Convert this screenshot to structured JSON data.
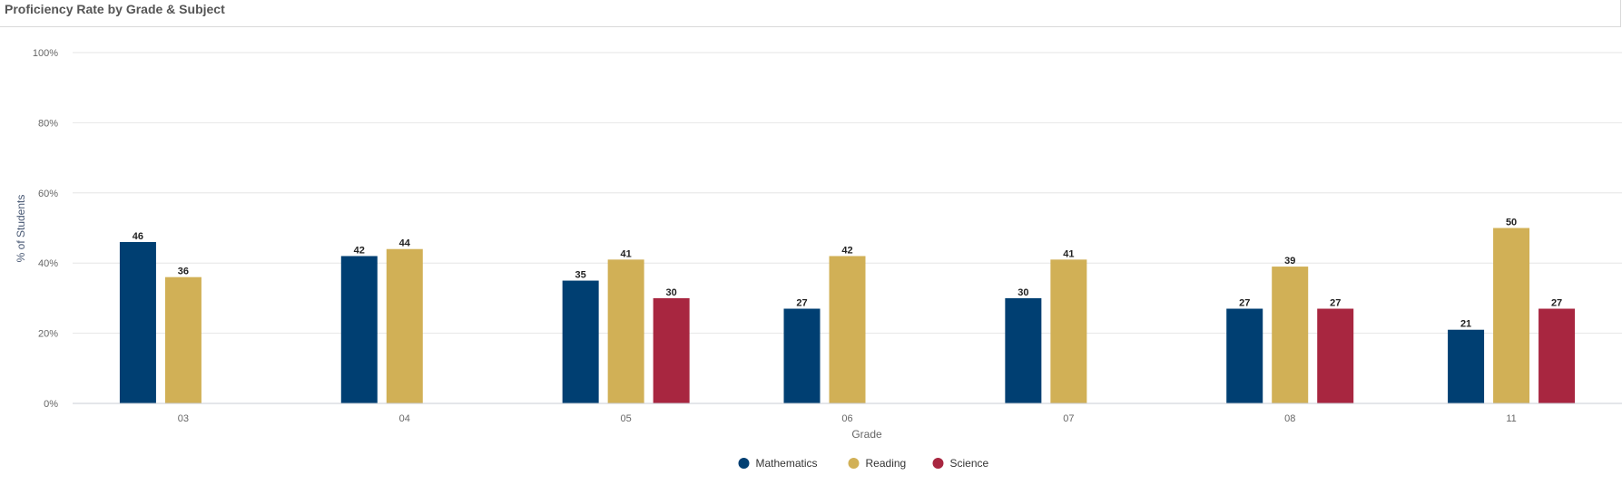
{
  "header": {
    "title": "Proficiency Rate by Grade & Subject"
  },
  "chart_data": {
    "type": "bar",
    "title": "Proficiency Rate by Grade & Subject",
    "xlabel": "Grade",
    "ylabel": "% of Students",
    "categories": [
      "03",
      "04",
      "05",
      "06",
      "07",
      "08",
      "11"
    ],
    "ylim": [
      0,
      100
    ],
    "yticks": [
      "0%",
      "20%",
      "40%",
      "60%",
      "80%",
      "100%"
    ],
    "ytick_values": [
      0,
      20,
      40,
      60,
      80,
      100
    ],
    "grid": true,
    "legend_position": "bottom-center",
    "series": [
      {
        "name": "Mathematics",
        "color": "#003f72",
        "values": [
          46,
          42,
          35,
          27,
          30,
          27,
          21
        ]
      },
      {
        "name": "Reading",
        "color": "#d1b056",
        "values": [
          36,
          44,
          41,
          42,
          41,
          39,
          50
        ]
      },
      {
        "name": "Science",
        "color": "#a82640",
        "values": [
          null,
          null,
          30,
          null,
          null,
          27,
          27
        ]
      }
    ]
  }
}
